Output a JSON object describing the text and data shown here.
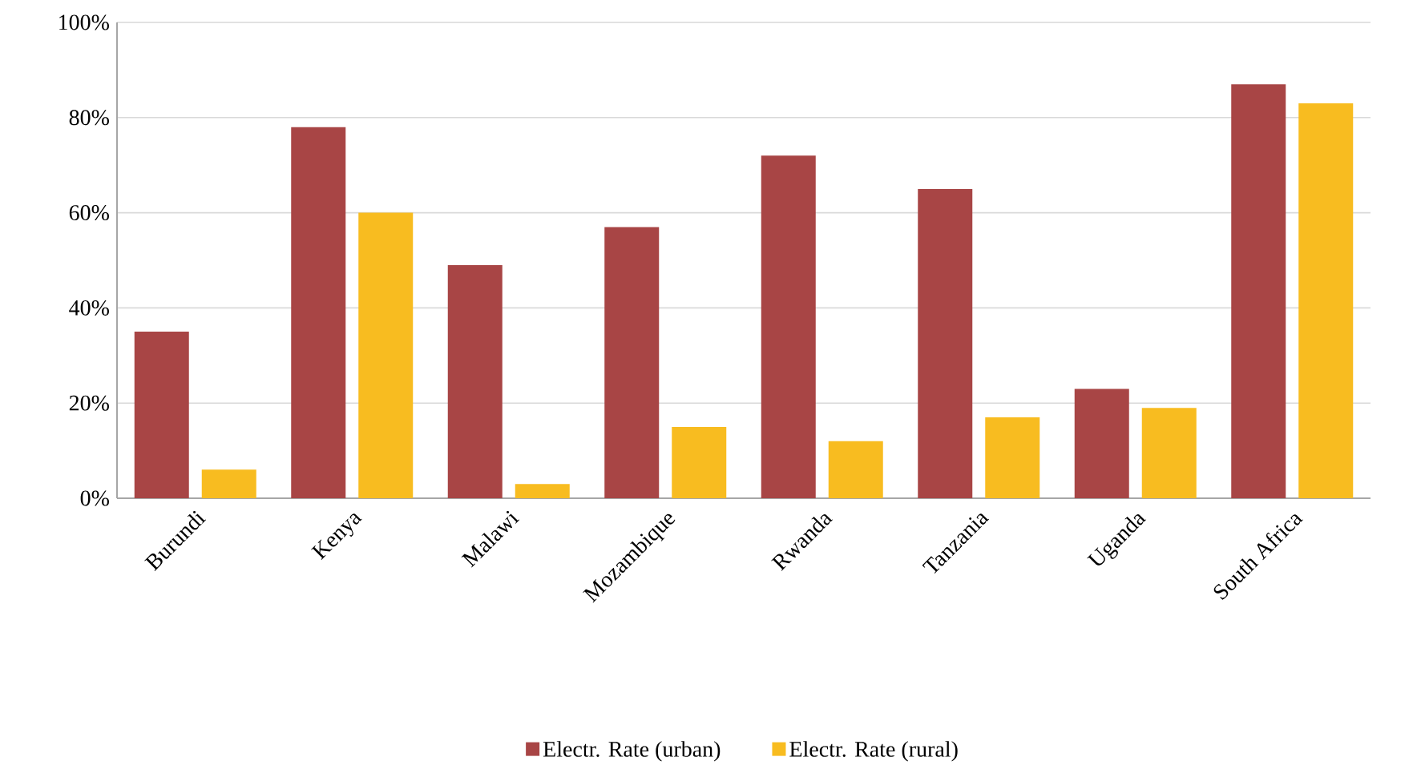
{
  "chart_data": {
    "type": "bar",
    "categories": [
      "Burundi",
      "Kenya",
      "Malawi",
      "Mozambique",
      "Rwanda",
      "Tanzania",
      "Uganda",
      "South Africa"
    ],
    "series": [
      {
        "name": "Electr. Rate (urban)",
        "color": "#a84545",
        "values": [
          35,
          78,
          49,
          57,
          72,
          65,
          23,
          87
        ]
      },
      {
        "name": "Electr. Rate (rural)",
        "color": "#f8bc20",
        "values": [
          6,
          60,
          3,
          15,
          12,
          17,
          19,
          83
        ]
      }
    ],
    "ylim": [
      0,
      100
    ],
    "yticks": [
      {
        "value": 0,
        "label": "0%"
      },
      {
        "value": 20,
        "label": "20%"
      },
      {
        "value": 40,
        "label": "40%"
      },
      {
        "value": 60,
        "label": "60%"
      },
      {
        "value": 80,
        "label": "80%"
      },
      {
        "value": 100,
        "label": "100%"
      }
    ],
    "grid": "y",
    "legend": "bottom"
  }
}
